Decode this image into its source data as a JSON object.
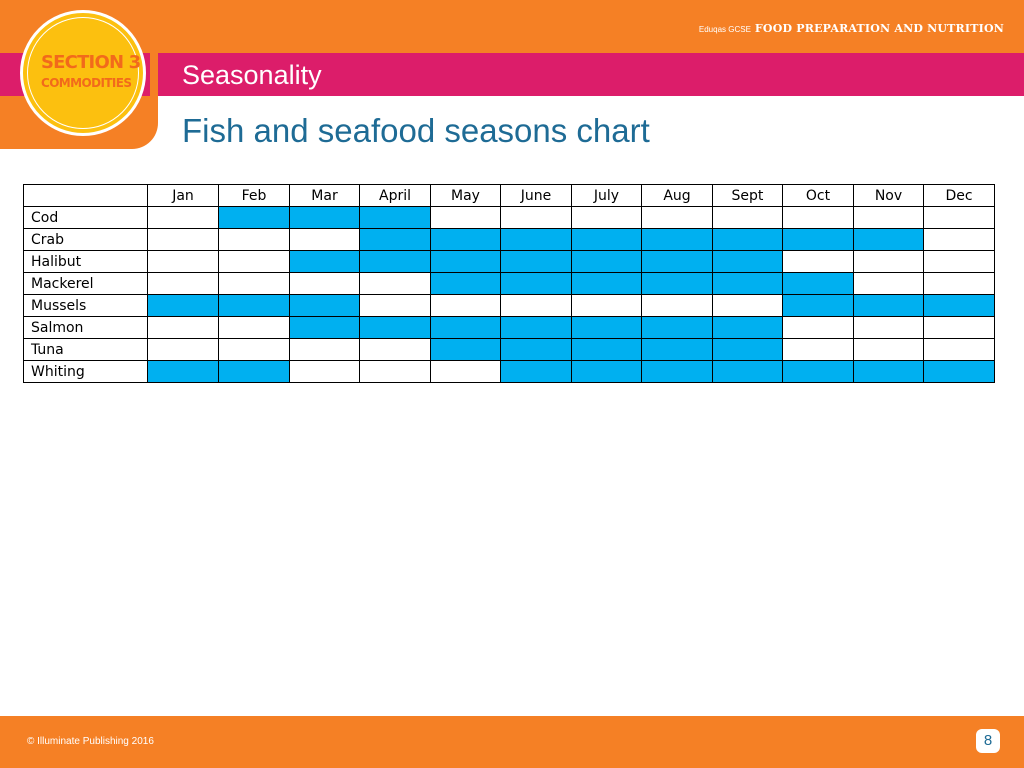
{
  "header": {
    "brand_small": "Eduqas GCSE",
    "brand_title": "FOOD PREPARATION AND NUTRITION",
    "badge_line1": "SECTION 3",
    "badge_line2": "COMMODITIES",
    "section_label": "Seasonality"
  },
  "slide": {
    "title": "Fish and seafood seasons chart"
  },
  "colors": {
    "orange": "#f58025",
    "pink": "#dc1d6a",
    "badge_yellow": "#fcc00f",
    "in_season_blue": "#00b0f0",
    "title_blue": "#1e6b95"
  },
  "table": {
    "months": [
      "Jan",
      "Feb",
      "Mar",
      "April",
      "May",
      "June",
      "July",
      "Aug",
      "Sept",
      "Oct",
      "Nov",
      "Dec"
    ],
    "rows": [
      {
        "name": "Cod",
        "in_season": [
          0,
          1,
          1,
          1,
          0,
          0,
          0,
          0,
          0,
          0,
          0,
          0
        ]
      },
      {
        "name": "Crab",
        "in_season": [
          0,
          0,
          0,
          1,
          1,
          1,
          1,
          1,
          1,
          1,
          1,
          0
        ]
      },
      {
        "name": "Halibut",
        "in_season": [
          0,
          0,
          1,
          1,
          1,
          1,
          1,
          1,
          1,
          0,
          0,
          0
        ]
      },
      {
        "name": "Mackerel",
        "in_season": [
          0,
          0,
          0,
          0,
          1,
          1,
          1,
          1,
          1,
          1,
          0,
          0
        ]
      },
      {
        "name": "Mussels",
        "in_season": [
          1,
          1,
          1,
          0,
          0,
          0,
          0,
          0,
          0,
          1,
          1,
          1
        ]
      },
      {
        "name": "Salmon",
        "in_season": [
          0,
          0,
          1,
          1,
          1,
          1,
          1,
          1,
          1,
          0,
          0,
          0
        ]
      },
      {
        "name": "Tuna",
        "in_season": [
          0,
          0,
          0,
          0,
          1,
          1,
          1,
          1,
          1,
          0,
          0,
          0
        ]
      },
      {
        "name": "Whiting",
        "in_season": [
          1,
          1,
          0,
          0,
          0,
          1,
          1,
          1,
          1,
          1,
          1,
          1
        ]
      }
    ]
  },
  "footer": {
    "copyright": "© Illuminate Publishing 2016",
    "page_number": "8"
  }
}
